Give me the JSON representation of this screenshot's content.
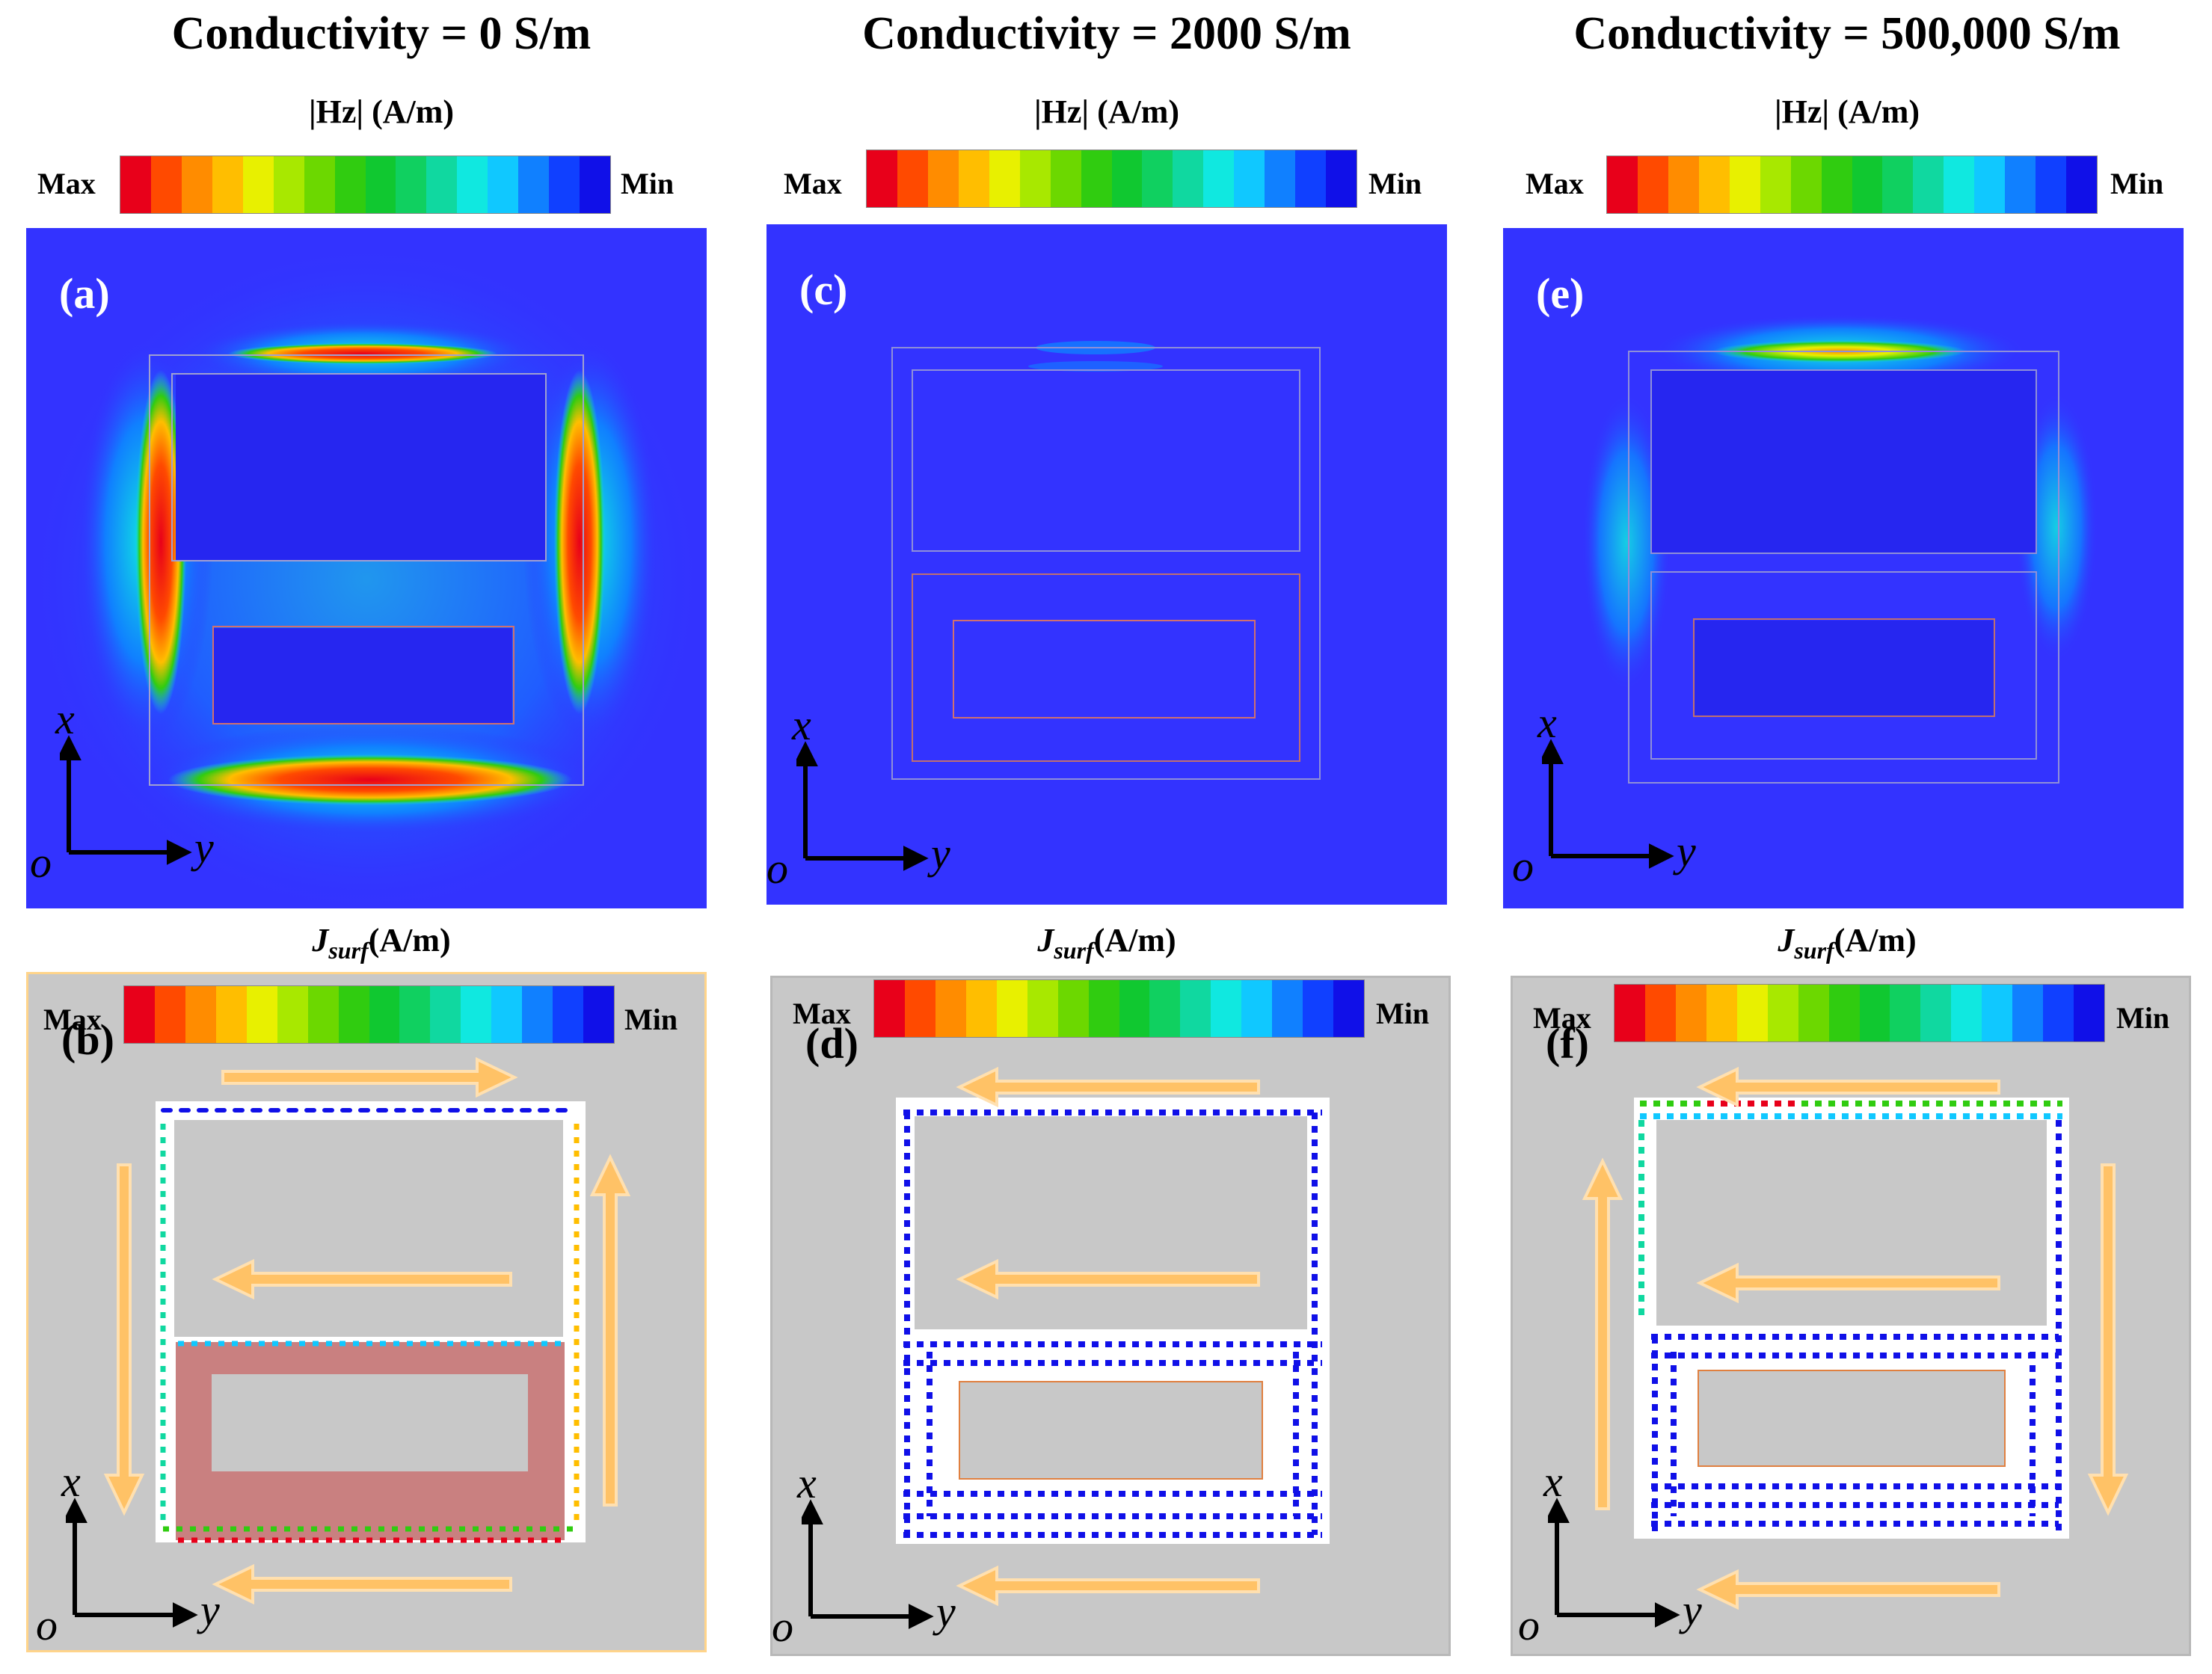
{
  "columns": [
    {
      "title": "Conductivity = 0  S/m",
      "top_label": "|Hz| (A/m)",
      "top_panel": "(a)",
      "bottom_label_main": "J",
      "bottom_label_sub": "surf",
      "bottom_label_unit": "(A/m)",
      "bottom_panel": "(b)"
    },
    {
      "title": "Conductivity = 2000  S/m",
      "top_label": "|Hz| (A/m)",
      "top_panel": "(c)",
      "bottom_label_main": "J",
      "bottom_label_sub": "surf",
      "bottom_label_unit": "(A/m)",
      "bottom_panel": "(d)"
    },
    {
      "title": "Conductivity = 500,000  S/m",
      "top_label": "|Hz| (A/m)",
      "top_panel": "(e)",
      "bottom_label_main": "J",
      "bottom_label_sub": "surf",
      "bottom_label_unit": "(A/m)",
      "bottom_panel": "(f)"
    }
  ],
  "legend": {
    "max": "Max",
    "min": "Min"
  },
  "axes": {
    "origin": "o",
    "x": "x",
    "y": "y"
  },
  "colors": {
    "colormap": [
      "#e8001a",
      "#ff4a00",
      "#ff8c00",
      "#ffbe00",
      "#e8f000",
      "#a8e800",
      "#6cd800",
      "#30cc10",
      "#10c830",
      "#10d060",
      "#10d8a0",
      "#10e8e0",
      "#10c8ff",
      "#1080ff",
      "#1040ff",
      "#1010e8"
    ],
    "field_bg": "#3333ff",
    "current_bg": "#c8c8c8",
    "arrow": "#ffc266",
    "dielectric": "#c98080"
  }
}
